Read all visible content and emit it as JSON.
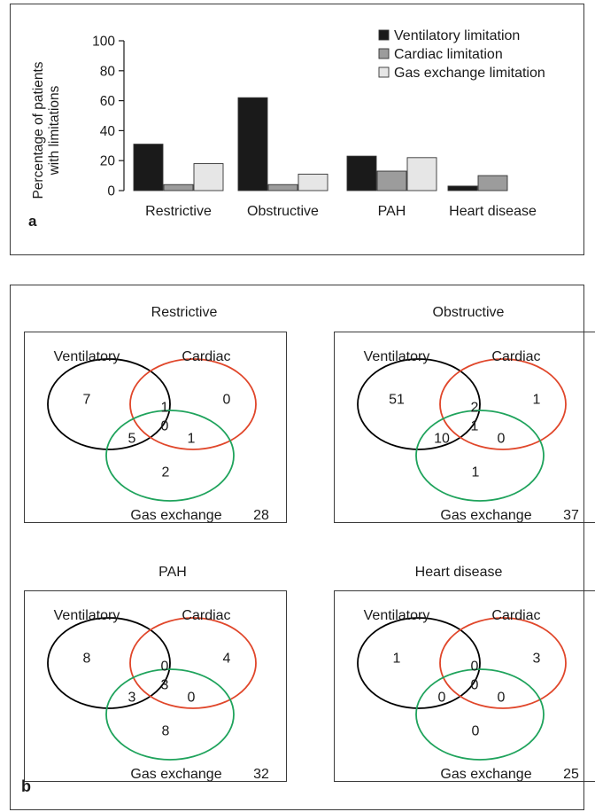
{
  "panel_a": {
    "letter": "a",
    "ylabel_line1": "Percentage of patients",
    "ylabel_line2": "with limitations"
  },
  "panel_b": {
    "letter": "b"
  },
  "colors": {
    "ventilatory_bar": "#1a1a1a",
    "cardiac_bar": "#9c9c9c",
    "gas_bar": "#e6e6e6",
    "ventilatory_circle": "#000000",
    "cardiac_circle": "#e0462a",
    "gas_circle": "#1fa35c"
  },
  "chart_data": [
    {
      "type": "bar",
      "categories": [
        "Restrictive",
        "Obstructive",
        "PAH",
        "Heart disease"
      ],
      "series": [
        {
          "name": "Ventilatory limitation",
          "values": [
            31,
            62,
            23,
            3
          ]
        },
        {
          "name": "Cardiac limitation",
          "values": [
            4,
            4,
            13,
            10
          ]
        },
        {
          "name": "Gas exchange limitation",
          "values": [
            18,
            11,
            22,
            0
          ]
        }
      ],
      "ylim": [
        0,
        100
      ],
      "yticks": [
        0,
        20,
        40,
        60,
        80,
        100
      ],
      "xlabel": "",
      "ylabel": "Percentage of patients with limitations",
      "legend": "top-right",
      "grid": false
    },
    {
      "type": "venn",
      "diagrams": [
        {
          "title": "Restrictive",
          "sets": [
            "Ventilatory",
            "Cardiac",
            "Gas exchange"
          ],
          "regions": {
            "ventilatory_only": "7",
            "cardiac_only": "0",
            "ventilatory_cardiac": "1",
            "all_three": "0",
            "ventilatory_gas": "5",
            "cardiac_gas": "1",
            "gas_only": "2"
          },
          "total": "28"
        },
        {
          "title": "Obstructive",
          "sets": [
            "Ventilatory",
            "Cardiac",
            "Gas exchange"
          ],
          "regions": {
            "ventilatory_only": "51",
            "cardiac_only": "1",
            "ventilatory_cardiac": "2",
            "all_three": "1",
            "ventilatory_gas": "10",
            "cardiac_gas": "0",
            "gas_only": "1"
          },
          "total": "37"
        },
        {
          "title": "PAH",
          "sets": [
            "Ventilatory",
            "Cardiac",
            "Gas exchange"
          ],
          "regions": {
            "ventilatory_only": "8",
            "cardiac_only": "4",
            "ventilatory_cardiac": "0",
            "all_three": "3",
            "ventilatory_gas": "3",
            "cardiac_gas": "0",
            "gas_only": "8"
          },
          "total": "32"
        },
        {
          "title": "Heart disease",
          "sets": [
            "Ventilatory",
            "Cardiac",
            "Gas exchange"
          ],
          "regions": {
            "ventilatory_only": "1",
            "cardiac_only": "3",
            "ventilatory_cardiac": "0",
            "all_three": "0",
            "ventilatory_gas": "0",
            "cardiac_gas": "0",
            "gas_only": "0"
          },
          "total": "25"
        }
      ]
    }
  ]
}
